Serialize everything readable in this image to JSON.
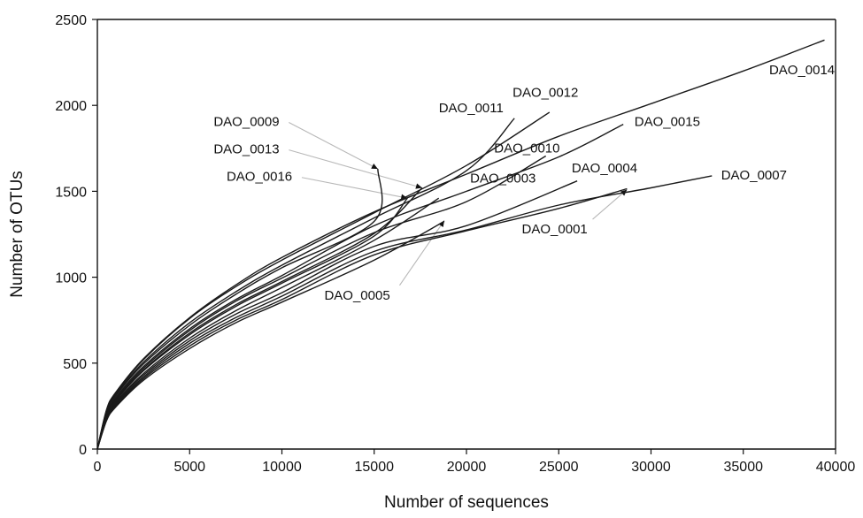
{
  "chart_data": {
    "type": "line",
    "xlabel": "Number of sequences",
    "ylabel": "Number of OTUs",
    "xlim": [
      0,
      40000
    ],
    "ylim": [
      0,
      2500
    ],
    "x_ticks": [
      "0",
      "5000",
      "10000",
      "15000",
      "20000",
      "25000",
      "30000",
      "35000",
      "40000"
    ],
    "y_ticks": [
      "0",
      "500",
      "1000",
      "1500",
      "2000",
      "2500"
    ],
    "grid": false,
    "legend": "none (direct labels)",
    "series": [
      {
        "name": "DAO_0014",
        "points": [
          [
            0,
            0
          ],
          [
            500,
            230
          ],
          [
            1000,
            330
          ],
          [
            2500,
            525
          ],
          [
            5000,
            765
          ],
          [
            7500,
            955
          ],
          [
            10000,
            1115
          ],
          [
            15000,
            1380
          ],
          [
            20000,
            1600
          ],
          [
            25000,
            1820
          ],
          [
            30000,
            2010
          ],
          [
            35000,
            2200
          ],
          [
            39400,
            2380
          ]
        ]
      },
      {
        "name": "DAO_0012",
        "points": [
          [
            0,
            0
          ],
          [
            500,
            225
          ],
          [
            1000,
            325
          ],
          [
            2500,
            520
          ],
          [
            5000,
            760
          ],
          [
            7500,
            945
          ],
          [
            10000,
            1100
          ],
          [
            15000,
            1375
          ],
          [
            20000,
            1650
          ],
          [
            24500,
            1960
          ]
        ]
      },
      {
        "name": "DAO_0011",
        "points": [
          [
            0,
            0
          ],
          [
            500,
            220
          ],
          [
            1000,
            318
          ],
          [
            2500,
            505
          ],
          [
            5000,
            735
          ],
          [
            7500,
            915
          ],
          [
            10000,
            1070
          ],
          [
            15000,
            1345
          ],
          [
            20000,
            1620
          ],
          [
            22600,
            1925
          ]
        ]
      },
      {
        "name": "DAO_0009",
        "points": [
          [
            0,
            0
          ],
          [
            500,
            215
          ],
          [
            1000,
            310
          ],
          [
            2500,
            495
          ],
          [
            5000,
            720
          ],
          [
            7500,
            900
          ],
          [
            10000,
            1055
          ],
          [
            15000,
            1325
          ],
          [
            15200,
            1630
          ]
        ]
      },
      {
        "name": "DAO_0015",
        "points": [
          [
            0,
            0
          ],
          [
            500,
            205
          ],
          [
            1000,
            300
          ],
          [
            2500,
            480
          ],
          [
            5000,
            700
          ],
          [
            7500,
            870
          ],
          [
            10000,
            1010
          ],
          [
            15000,
            1300
          ],
          [
            20000,
            1500
          ],
          [
            25000,
            1700
          ],
          [
            28500,
            1890
          ]
        ]
      },
      {
        "name": "DAO_0010",
        "points": [
          [
            0,
            0
          ],
          [
            500,
            200
          ],
          [
            1000,
            292
          ],
          [
            2500,
            470
          ],
          [
            5000,
            690
          ],
          [
            7500,
            860
          ],
          [
            10000,
            995
          ],
          [
            15000,
            1260
          ],
          [
            20000,
            1440
          ],
          [
            24300,
            1705
          ]
        ]
      },
      {
        "name": "DAO_0013",
        "points": [
          [
            0,
            0
          ],
          [
            500,
            195
          ],
          [
            1000,
            285
          ],
          [
            2500,
            460
          ],
          [
            5000,
            675
          ],
          [
            7500,
            840
          ],
          [
            10000,
            975
          ],
          [
            15000,
            1255
          ],
          [
            17600,
            1520
          ]
        ]
      },
      {
        "name": "DAO_0016",
        "points": [
          [
            0,
            0
          ],
          [
            500,
            190
          ],
          [
            1000,
            280
          ],
          [
            2500,
            455
          ],
          [
            5000,
            665
          ],
          [
            7500,
            830
          ],
          [
            10000,
            965
          ],
          [
            15000,
            1240
          ],
          [
            16800,
            1460
          ]
        ]
      },
      {
        "name": "DAO_0003",
        "points": [
          [
            0,
            0
          ],
          [
            500,
            185
          ],
          [
            1000,
            272
          ],
          [
            2500,
            440
          ],
          [
            5000,
            645
          ],
          [
            7500,
            805
          ],
          [
            10000,
            940
          ],
          [
            15000,
            1215
          ],
          [
            18500,
            1460
          ]
        ]
      },
      {
        "name": "DAO_0004",
        "points": [
          [
            0,
            0
          ],
          [
            500,
            180
          ],
          [
            1000,
            265
          ],
          [
            2500,
            430
          ],
          [
            5000,
            630
          ],
          [
            7500,
            785
          ],
          [
            10000,
            910
          ],
          [
            15000,
            1180
          ],
          [
            20000,
            1300
          ],
          [
            26000,
            1560
          ]
        ]
      },
      {
        "name": "DAO_0007",
        "points": [
          [
            0,
            0
          ],
          [
            500,
            175
          ],
          [
            1000,
            258
          ],
          [
            2500,
            420
          ],
          [
            5000,
            615
          ],
          [
            7500,
            765
          ],
          [
            10000,
            890
          ],
          [
            15000,
            1150
          ],
          [
            20000,
            1275
          ],
          [
            25000,
            1420
          ],
          [
            30000,
            1520
          ],
          [
            33300,
            1590
          ]
        ]
      },
      {
        "name": "DAO_0001",
        "points": [
          [
            0,
            0
          ],
          [
            500,
            170
          ],
          [
            1000,
            252
          ],
          [
            2500,
            410
          ],
          [
            5000,
            600
          ],
          [
            7500,
            750
          ],
          [
            10000,
            870
          ],
          [
            15000,
            1130
          ],
          [
            20000,
            1270
          ],
          [
            25000,
            1400
          ],
          [
            28700,
            1515
          ]
        ]
      },
      {
        "name": "DAO_0005",
        "points": [
          [
            0,
            0
          ],
          [
            500,
            165
          ],
          [
            1000,
            245
          ],
          [
            2500,
            400
          ],
          [
            5000,
            585
          ],
          [
            7500,
            735
          ],
          [
            10000,
            855
          ],
          [
            15000,
            1100
          ],
          [
            18800,
            1325
          ]
        ]
      }
    ],
    "annotations": [
      {
        "text": "DAO_0014",
        "x": 36400,
        "y": 2180
      },
      {
        "text": "DAO_0012",
        "x": 22500,
        "y": 2050
      },
      {
        "text": "DAO_0011",
        "x": 18500,
        "y": 1960
      },
      {
        "text": "DAO_0009",
        "x": 6300,
        "y": 1880,
        "leader_to": [
          15200,
          1630
        ]
      },
      {
        "text": "DAO_0013",
        "x": 6300,
        "y": 1720,
        "leader_to": [
          17600,
          1520
        ]
      },
      {
        "text": "DAO_0016",
        "x": 7000,
        "y": 1560,
        "leader_to": [
          16800,
          1460
        ]
      },
      {
        "text": "DAO_0015",
        "x": 29100,
        "y": 1880
      },
      {
        "text": "DAO_0010",
        "x": 21500,
        "y": 1725
      },
      {
        "text": "DAO_0003",
        "x": 20200,
        "y": 1550
      },
      {
        "text": "DAO_0004",
        "x": 25700,
        "y": 1610
      },
      {
        "text": "DAO_0007",
        "x": 33800,
        "y": 1570
      },
      {
        "text": "DAO_0001",
        "x": 23000,
        "y": 1255,
        "leader_to": [
          28700,
          1510
        ]
      },
      {
        "text": "DAO_0005",
        "x": 12300,
        "y": 870,
        "leader_to": [
          18800,
          1330
        ]
      }
    ]
  }
}
